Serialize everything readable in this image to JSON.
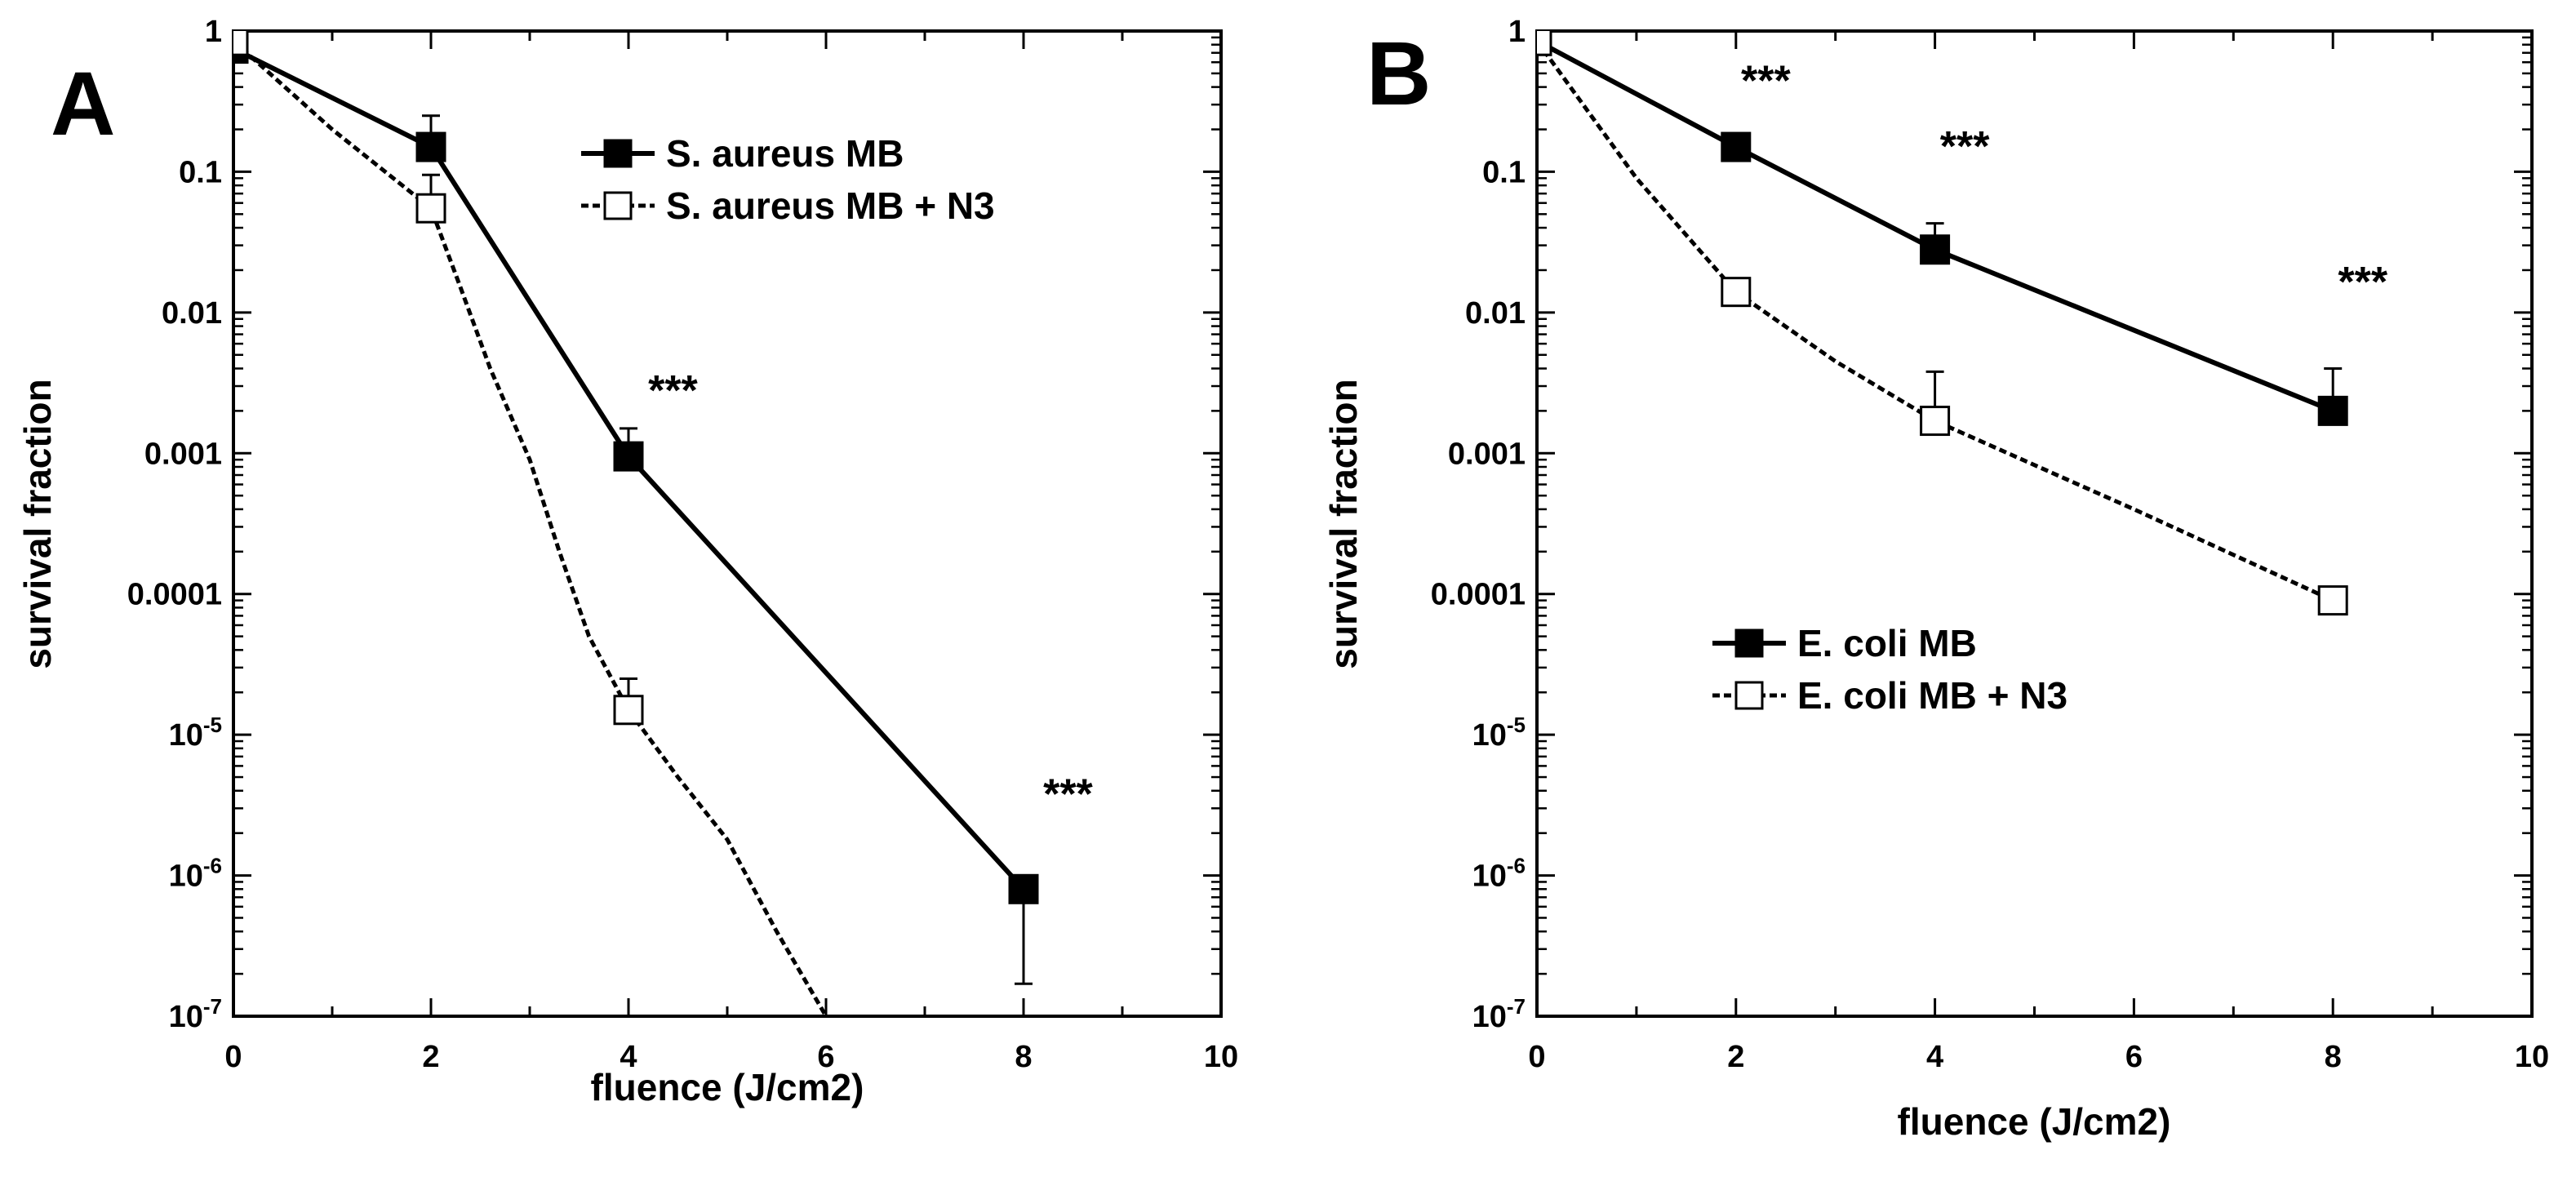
{
  "chart_data": [
    {
      "type": "line",
      "panel_label": "A",
      "xlabel": "fluence (J/cm2)",
      "ylabel": "survival fraction",
      "y_scale": "log",
      "xlim": [
        0,
        10
      ],
      "ylim": [
        1e-07,
        1
      ],
      "x_ticks": [
        0,
        2,
        4,
        6,
        8,
        10
      ],
      "y_ticks": [
        {
          "value": 1,
          "label": "1"
        },
        {
          "value": 0.1,
          "label": "0.1"
        },
        {
          "value": 0.01,
          "label": "0.01"
        },
        {
          "value": 0.001,
          "label": "0.001"
        },
        {
          "value": 0.0001,
          "label": "0.0001"
        },
        {
          "value": 1e-05,
          "base": "10",
          "exp": "-5"
        },
        {
          "value": 1e-06,
          "base": "10",
          "exp": "-6"
        },
        {
          "value": 1e-07,
          "base": "10",
          "exp": "-7"
        }
      ],
      "grid": false,
      "legend_position": "top-right",
      "series": [
        {
          "name": "S. aureus MB",
          "style": "solid",
          "marker": "filled-square",
          "points": [
            {
              "x": 0,
              "y": 0.75,
              "err": null
            },
            {
              "x": 2,
              "y": 0.15,
              "err": 0.25
            },
            {
              "x": 4,
              "y": 0.00095,
              "err": 0.0015
            },
            {
              "x": 8,
              "y": 8e-07,
              "err": 1.7e-07
            }
          ],
          "curve": [
            [
              0,
              0.75
            ],
            [
              2,
              0.15
            ],
            [
              4,
              0.00095
            ],
            [
              8,
              8e-07
            ]
          ]
        },
        {
          "name": "S. aureus MB + N3",
          "style": "dotted",
          "marker": "open-square",
          "points": [
            {
              "x": 0,
              "y": 0.85,
              "err": null
            },
            {
              "x": 2,
              "y": 0.055,
              "err": 0.095
            },
            {
              "x": 4,
              "y": 1.5e-05,
              "err": 2.5e-05
            }
          ],
          "curve": [
            [
              0,
              0.85
            ],
            [
              1,
              0.2
            ],
            [
              2,
              0.055
            ],
            [
              2.3,
              0.015
            ],
            [
              2.6,
              0.004
            ],
            [
              3,
              0.0009
            ],
            [
              3.3,
              0.0002
            ],
            [
              3.6,
              5e-05
            ],
            [
              4,
              1.5e-05
            ],
            [
              4.5,
              5e-06
            ],
            [
              5,
              1.8e-06
            ],
            [
              5.5,
              4e-07
            ],
            [
              6,
              1e-07
            ]
          ]
        }
      ],
      "annotations": [
        {
          "text": "***",
          "x": 4.45,
          "y": 0.0022
        },
        {
          "text": "***",
          "x": 8.45,
          "y": 3e-06
        }
      ]
    },
    {
      "type": "line",
      "panel_label": "B",
      "xlabel": "fluence (J/cm2)",
      "ylabel": "survival fraction",
      "y_scale": "log",
      "xlim": [
        0,
        10
      ],
      "ylim": [
        1e-07,
        1
      ],
      "x_ticks": [
        0,
        2,
        4,
        6,
        8,
        10
      ],
      "y_ticks": [
        {
          "value": 1,
          "label": "1"
        },
        {
          "value": 0.1,
          "label": "0.1"
        },
        {
          "value": 0.01,
          "label": "0.01"
        },
        {
          "value": 0.001,
          "label": "0.001"
        },
        {
          "value": 0.0001,
          "label": "0.0001"
        },
        {
          "value": 1e-05,
          "base": "10",
          "exp": "-5"
        },
        {
          "value": 1e-06,
          "base": "10",
          "exp": "-6"
        },
        {
          "value": 1e-07,
          "base": "10",
          "exp": "-7"
        }
      ],
      "grid": false,
      "legend_position": "center-left",
      "series": [
        {
          "name": "E. coli MB",
          "style": "solid",
          "marker": "filled-square",
          "points": [
            {
              "x": 0,
              "y": 0.85,
              "err": null
            },
            {
              "x": 2,
              "y": 0.15,
              "err": null
            },
            {
              "x": 4,
              "y": 0.028,
              "err": 0.043
            },
            {
              "x": 8,
              "y": 0.002,
              "err": 0.004
            }
          ],
          "curve": [
            [
              0,
              0.85
            ],
            [
              2,
              0.15
            ],
            [
              4,
              0.028
            ],
            [
              8,
              0.002
            ]
          ]
        },
        {
          "name": "E. coli MB + N3",
          "style": "dotted",
          "marker": "open-square",
          "points": [
            {
              "x": 0,
              "y": 0.85,
              "err": null
            },
            {
              "x": 2,
              "y": 0.014,
              "err": null
            },
            {
              "x": 4,
              "y": 0.0017,
              "err": 0.0038
            },
            {
              "x": 8,
              "y": 9e-05,
              "err": null
            }
          ],
          "curve": [
            [
              0,
              0.85
            ],
            [
              1,
              0.09
            ],
            [
              2,
              0.014
            ],
            [
              3,
              0.0045
            ],
            [
              4,
              0.0017
            ],
            [
              6,
              0.0004
            ],
            [
              8,
              9e-05
            ]
          ]
        }
      ],
      "annotations": [
        {
          "text": "***",
          "x": 2.3,
          "y": 0.35
        },
        {
          "text": "***",
          "x": 4.3,
          "y": 0.12
        },
        {
          "text": "***",
          "x": 8.3,
          "y": 0.013
        }
      ]
    }
  ]
}
